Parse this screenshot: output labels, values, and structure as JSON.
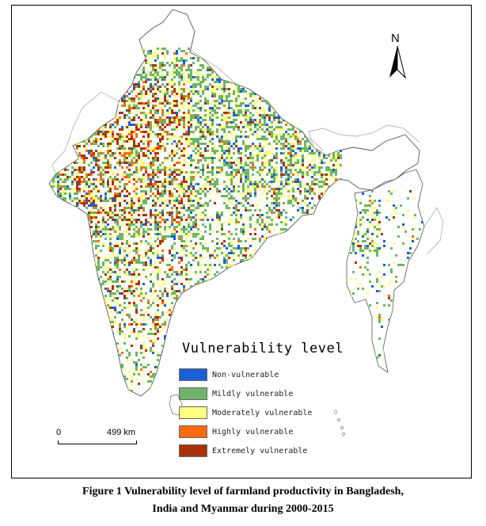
{
  "north_arrow": {
    "label": "N"
  },
  "legend": {
    "title": "Vulnerability level",
    "items": [
      {
        "label": "Non-vulnerable",
        "color": "#1a5fd6"
      },
      {
        "label": "Mildly vulnerable",
        "color": "#6fb46a"
      },
      {
        "label": "Moderately vulnerable",
        "color": "#ffff80"
      },
      {
        "label": "Highly vulnerable",
        "color": "#ff6a10"
      },
      {
        "label": "Extremely vulnerable",
        "color": "#a8330a"
      }
    ]
  },
  "scale_bar": {
    "start": "0",
    "distance": "499 km"
  },
  "caption": {
    "line1": "Figure 1  Vulnerability level of farmland productivity in Bangladesh,",
    "line2": "India and Myanmar during 2000-2015"
  }
}
